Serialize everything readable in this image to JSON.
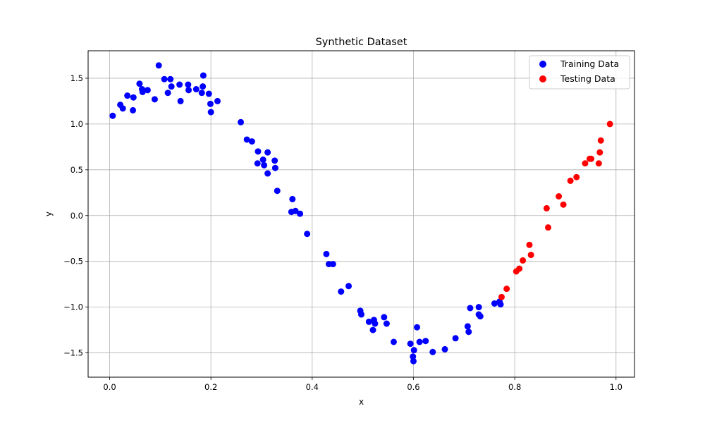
{
  "chart_data": {
    "type": "scatter",
    "title": "Synthetic Dataset",
    "xlabel": "x",
    "ylabel": "y",
    "xlim": [
      -0.0425,
      1.0365
    ],
    "ylim": [
      -1.765,
      1.8
    ],
    "xticks": [
      0.0,
      0.2,
      0.4,
      0.6,
      0.8,
      1.0
    ],
    "xtick_labels": [
      "0.0",
      "0.2",
      "0.4",
      "0.6",
      "0.8",
      "1.0"
    ],
    "yticks": [
      -1.5,
      -1.0,
      -0.5,
      0.0,
      0.5,
      1.0,
      1.5
    ],
    "ytick_labels": [
      "−1.5",
      "−1.0",
      "−0.5",
      "0.0",
      "0.5",
      "1.0",
      "1.5"
    ],
    "grid": true,
    "legend_position": "top-right",
    "series": [
      {
        "name": "Training Data",
        "color": "#0000ff",
        "points": [
          [
            0.006,
            1.09
          ],
          [
            0.021,
            1.21
          ],
          [
            0.026,
            1.17
          ],
          [
            0.035,
            1.31
          ],
          [
            0.046,
            1.15
          ],
          [
            0.047,
            1.29
          ],
          [
            0.059,
            1.44
          ],
          [
            0.064,
            1.38
          ],
          [
            0.065,
            1.35
          ],
          [
            0.075,
            1.37
          ],
          [
            0.089,
            1.27
          ],
          [
            0.097,
            1.64
          ],
          [
            0.108,
            1.49
          ],
          [
            0.115,
            1.34
          ],
          [
            0.12,
            1.49
          ],
          [
            0.122,
            1.41
          ],
          [
            0.138,
            1.43
          ],
          [
            0.14,
            1.25
          ],
          [
            0.155,
            1.43
          ],
          [
            0.156,
            1.37
          ],
          [
            0.171,
            1.38
          ],
          [
            0.182,
            1.34
          ],
          [
            0.184,
            1.41
          ],
          [
            0.185,
            1.53
          ],
          [
            0.196,
            1.33
          ],
          [
            0.199,
            1.22
          ],
          [
            0.2,
            1.13
          ],
          [
            0.213,
            1.25
          ],
          [
            0.259,
            1.02
          ],
          [
            0.271,
            0.83
          ],
          [
            0.281,
            0.81
          ],
          [
            0.292,
            0.57
          ],
          [
            0.293,
            0.7
          ],
          [
            0.303,
            0.61
          ],
          [
            0.305,
            0.55
          ],
          [
            0.312,
            0.69
          ],
          [
            0.312,
            0.46
          ],
          [
            0.326,
            0.6
          ],
          [
            0.327,
            0.52
          ],
          [
            0.331,
            0.27
          ],
          [
            0.359,
            0.04
          ],
          [
            0.361,
            0.18
          ],
          [
            0.367,
            0.05
          ],
          [
            0.376,
            0.02
          ],
          [
            0.39,
            -0.2
          ],
          [
            0.428,
            -0.42
          ],
          [
            0.433,
            -0.53
          ],
          [
            0.441,
            -0.53
          ],
          [
            0.457,
            -0.83
          ],
          [
            0.472,
            -0.77
          ],
          [
            0.495,
            -1.04
          ],
          [
            0.497,
            -1.08
          ],
          [
            0.512,
            -1.16
          ],
          [
            0.52,
            -1.25
          ],
          [
            0.522,
            -1.14
          ],
          [
            0.524,
            -1.18
          ],
          [
            0.542,
            -1.11
          ],
          [
            0.547,
            -1.18
          ],
          [
            0.561,
            -1.38
          ],
          [
            0.594,
            -1.4
          ],
          [
            0.599,
            -1.54
          ],
          [
            0.6,
            -1.59
          ],
          [
            0.601,
            -1.47
          ],
          [
            0.607,
            -1.22
          ],
          [
            0.612,
            -1.38
          ],
          [
            0.624,
            -1.37
          ],
          [
            0.638,
            -1.49
          ],
          [
            0.662,
            -1.46
          ],
          [
            0.683,
            -1.34
          ],
          [
            0.707,
            -1.21
          ],
          [
            0.709,
            -1.27
          ],
          [
            0.712,
            -1.01
          ],
          [
            0.729,
            -1.08
          ],
          [
            0.729,
            -1.0
          ],
          [
            0.732,
            -1.1
          ],
          [
            0.76,
            -0.96
          ],
          [
            0.77,
            -0.94
          ],
          [
            0.772,
            -0.97
          ]
        ]
      },
      {
        "name": "Testing Data",
        "color": "#ff0000",
        "points": [
          [
            0.774,
            -0.89
          ],
          [
            0.784,
            -0.8
          ],
          [
            0.803,
            -0.61
          ],
          [
            0.809,
            -0.58
          ],
          [
            0.816,
            -0.49
          ],
          [
            0.829,
            -0.32
          ],
          [
            0.832,
            -0.43
          ],
          [
            0.863,
            0.08
          ],
          [
            0.866,
            -0.13
          ],
          [
            0.887,
            0.21
          ],
          [
            0.896,
            0.12
          ],
          [
            0.91,
            0.38
          ],
          [
            0.922,
            0.42
          ],
          [
            0.939,
            0.57
          ],
          [
            0.948,
            0.62
          ],
          [
            0.951,
            0.62
          ],
          [
            0.966,
            0.57
          ],
          [
            0.968,
            0.69
          ],
          [
            0.97,
            0.82
          ],
          [
            0.988,
            1.0
          ]
        ]
      }
    ]
  }
}
